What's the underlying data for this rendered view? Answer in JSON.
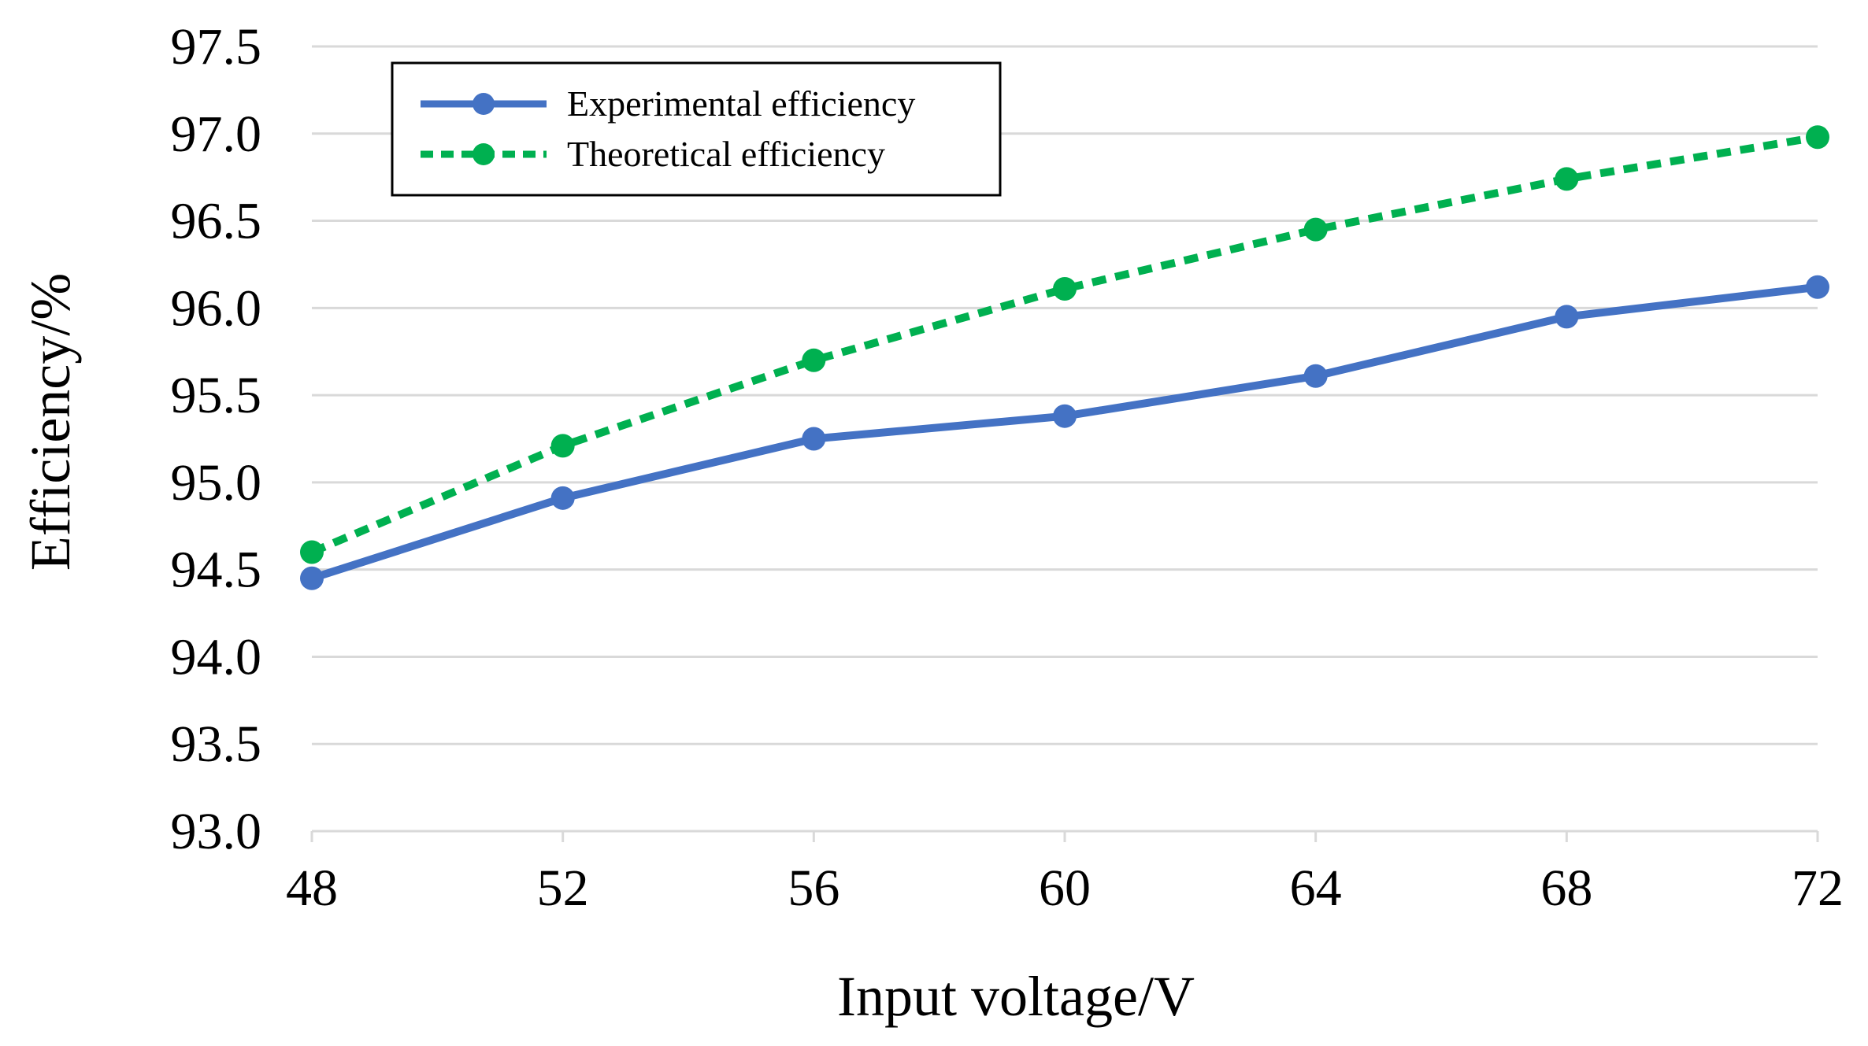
{
  "chart_data": {
    "type": "line",
    "title": "",
    "xlabel": "Input voltage/V",
    "ylabel": "Efficiency/%",
    "x": [
      48,
      52,
      56,
      60,
      64,
      68,
      72
    ],
    "x_tick_labels": [
      "48",
      "52",
      "56",
      "60",
      "64",
      "68",
      "72"
    ],
    "y_tick_labels": [
      "93.0",
      "93.5",
      "94.0",
      "94.5",
      "95.0",
      "95.5",
      "96.0",
      "96.5",
      "97.0",
      "97.5"
    ],
    "xlim": [
      48,
      72
    ],
    "ylim": [
      93.0,
      97.5
    ],
    "y_ticks": [
      93.0,
      93.5,
      94.0,
      94.5,
      95.0,
      95.5,
      96.0,
      96.5,
      97.0,
      97.5
    ],
    "grid": "horizontal",
    "legend_position": "top-left",
    "series": [
      {
        "name": "Experimental efficiency",
        "values": [
          94.45,
          94.91,
          95.25,
          95.38,
          95.61,
          95.95,
          96.12
        ],
        "color": "#4472C4",
        "line_style": "solid"
      },
      {
        "name": "Theoretical efficiency",
        "values": [
          94.6,
          95.21,
          95.7,
          96.11,
          96.45,
          96.74,
          96.98
        ],
        "color": "#00B050",
        "line_style": "dashed"
      }
    ]
  }
}
